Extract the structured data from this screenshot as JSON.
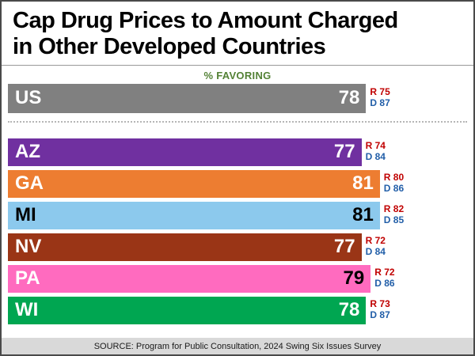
{
  "title": {
    "line1": "Cap Drug Prices to Amount Charged",
    "line2": "in Other Developed Countries"
  },
  "source": "SOURCE: Program for Public Consultation, 2024 Swing Six Issues Survey",
  "colors": {
    "republican_label": "#c00000",
    "democrat_label": "#215ea8",
    "subtitle_green": "#538135",
    "source_bar_bg": "#d9d9d9",
    "frame_border": "#4a4a4a"
  },
  "chart_data": {
    "type": "bar",
    "orientation": "horizontal",
    "title": "Cap Drug Prices to Amount Charged in Other Developed Countries",
    "subtitle": "% FAVORING",
    "xlim": [
      0,
      100
    ],
    "grid": false,
    "legend": "none",
    "categories": [
      "US",
      "AZ",
      "GA",
      "MI",
      "NV",
      "PA",
      "WI"
    ],
    "series": [
      {
        "name": "% Favoring (overall)",
        "values": [
          78,
          77,
          81,
          81,
          77,
          79,
          78
        ]
      },
      {
        "name": "Republicans (R)",
        "values": [
          75,
          74,
          80,
          82,
          72,
          72,
          73
        ]
      },
      {
        "name": "Democrats (D)",
        "values": [
          87,
          84,
          86,
          85,
          84,
          86,
          87
        ]
      }
    ],
    "rows": [
      {
        "label": "US",
        "value": 78,
        "r": "R 75",
        "d": "D 87",
        "color": "#808080",
        "label_color": "#ffffff",
        "value_color": "#ffffff"
      },
      {
        "label": "AZ",
        "value": 77,
        "r": "R 74",
        "d": "D 84",
        "color": "#7030a0",
        "label_color": "#ffffff",
        "value_color": "#ffffff"
      },
      {
        "label": "GA",
        "value": 81,
        "r": "R 80",
        "d": "D 86",
        "color": "#ed7d31",
        "label_color": "#ffffff",
        "value_color": "#ffffff"
      },
      {
        "label": "MI",
        "value": 81,
        "r": "R 82",
        "d": "D 85",
        "color": "#8cc9ed",
        "label_color": "#000000",
        "value_color": "#000000"
      },
      {
        "label": "NV",
        "value": 77,
        "r": "R 72",
        "d": "D 84",
        "color": "#9a3516",
        "label_color": "#ffffff",
        "value_color": "#ffffff"
      },
      {
        "label": "PA",
        "value": 79,
        "r": "R 72",
        "d": "D 86",
        "color": "#ff6bbf",
        "label_color": "#ffffff",
        "value_color": "#000000"
      },
      {
        "label": "WI",
        "value": 78,
        "r": "R 73",
        "d": "D 87",
        "color": "#00a651",
        "label_color": "#ffffff",
        "value_color": "#ffffff"
      }
    ]
  }
}
